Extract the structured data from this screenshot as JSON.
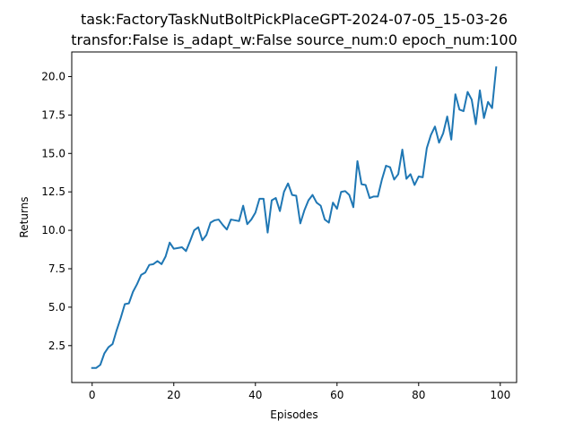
{
  "chart_data": {
    "type": "line",
    "title": "task:FactoryTaskNutBoltPickPlaceGPT-2024-07-05_15-03-26",
    "subtitle": "transfor:False  is_adapt_w:False source_num:0   epoch_num:100",
    "xlabel": "Episodes",
    "ylabel": "Returns",
    "xlim": [
      -5,
      104
    ],
    "ylim": [
      0.1,
      21.6
    ],
    "xticks": [
      0,
      20,
      40,
      60,
      80,
      100
    ],
    "yticks": [
      2.5,
      5.0,
      7.5,
      10.0,
      12.5,
      15.0,
      17.5,
      20.0
    ],
    "ytick_labels": [
      "2.5",
      "5.0",
      "7.5",
      "10.0",
      "12.5",
      "15.0",
      "17.5",
      "20.0"
    ],
    "grid": false,
    "line_color": "#1f77b4",
    "series": [
      {
        "x": [
          0,
          1,
          2,
          3,
          4,
          5,
          6,
          7,
          8,
          9,
          10,
          11,
          12,
          13,
          14,
          15,
          16,
          17,
          18,
          19,
          20,
          21,
          22,
          23,
          24,
          25,
          26,
          27,
          28,
          29,
          30,
          31,
          32,
          33,
          34,
          35,
          36,
          37,
          38,
          39,
          40,
          41,
          42,
          43,
          44,
          45,
          46,
          47,
          48,
          49,
          50,
          51,
          52,
          53,
          54,
          55,
          56,
          57,
          58,
          59,
          60,
          61,
          62,
          63,
          64,
          65,
          66,
          67,
          68,
          69,
          70,
          71,
          72,
          73,
          74,
          75,
          76,
          77,
          78,
          79,
          80,
          81,
          82,
          83,
          84,
          85,
          86,
          87,
          88,
          89,
          90,
          91,
          92,
          93,
          94,
          95,
          96,
          97,
          98,
          99
        ],
        "values": [
          1.05,
          1.05,
          1.25,
          2.0,
          2.4,
          2.6,
          3.5,
          4.3,
          5.2,
          5.25,
          6.0,
          6.5,
          7.1,
          7.25,
          7.75,
          7.8,
          8.0,
          7.8,
          8.3,
          9.2,
          8.8,
          8.85,
          8.9,
          8.65,
          9.3,
          10.0,
          10.2,
          9.35,
          9.7,
          10.5,
          10.65,
          10.7,
          10.35,
          10.05,
          10.7,
          10.65,
          10.6,
          11.6,
          10.4,
          10.7,
          11.15,
          12.05,
          12.05,
          9.85,
          11.95,
          12.1,
          11.25,
          12.5,
          13.05,
          12.3,
          12.25,
          10.45,
          11.3,
          11.95,
          12.3,
          11.8,
          11.6,
          10.7,
          10.5,
          11.8,
          11.4,
          12.5,
          12.55,
          12.3,
          11.5,
          14.5,
          13.0,
          12.95,
          12.1,
          12.2,
          12.2,
          13.3,
          14.2,
          14.1,
          13.3,
          13.65,
          15.25,
          13.35,
          13.65,
          12.95,
          13.5,
          13.45,
          15.35,
          16.2,
          16.75,
          15.7,
          16.3,
          17.4,
          15.9,
          18.85,
          17.85,
          17.75,
          19.0,
          18.5,
          16.9,
          19.1,
          17.3,
          18.35,
          17.95,
          20.6
        ]
      }
    ]
  }
}
